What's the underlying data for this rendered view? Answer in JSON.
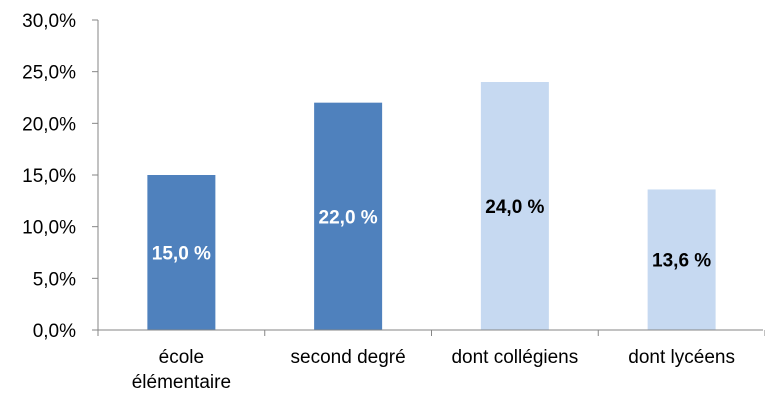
{
  "chart_data": {
    "type": "bar",
    "title": "",
    "xlabel": "",
    "ylabel": "",
    "categories": [
      [
        "école",
        "élémentaire"
      ],
      [
        "second degré"
      ],
      [
        "dont collégiens"
      ],
      [
        "dont lycéens"
      ]
    ],
    "values": [
      15.0,
      22.0,
      24.0,
      13.6
    ],
    "data_labels": [
      "15,0 %",
      "22,0 %",
      "24,0 %",
      "13,6 %"
    ],
    "bar_colors": [
      "#4f81bd",
      "#4f81bd",
      "#c6d9f1",
      "#c6d9f1"
    ],
    "label_colors": [
      "#ffffff",
      "#ffffff",
      "#000000",
      "#000000"
    ],
    "ylim": [
      0,
      30
    ],
    "yticks": [
      "0,0%",
      "5,0%",
      "10,0%",
      "15,0%",
      "20,0%",
      "25,0%",
      "30,0%"
    ],
    "grid": false,
    "legend": "none"
  }
}
